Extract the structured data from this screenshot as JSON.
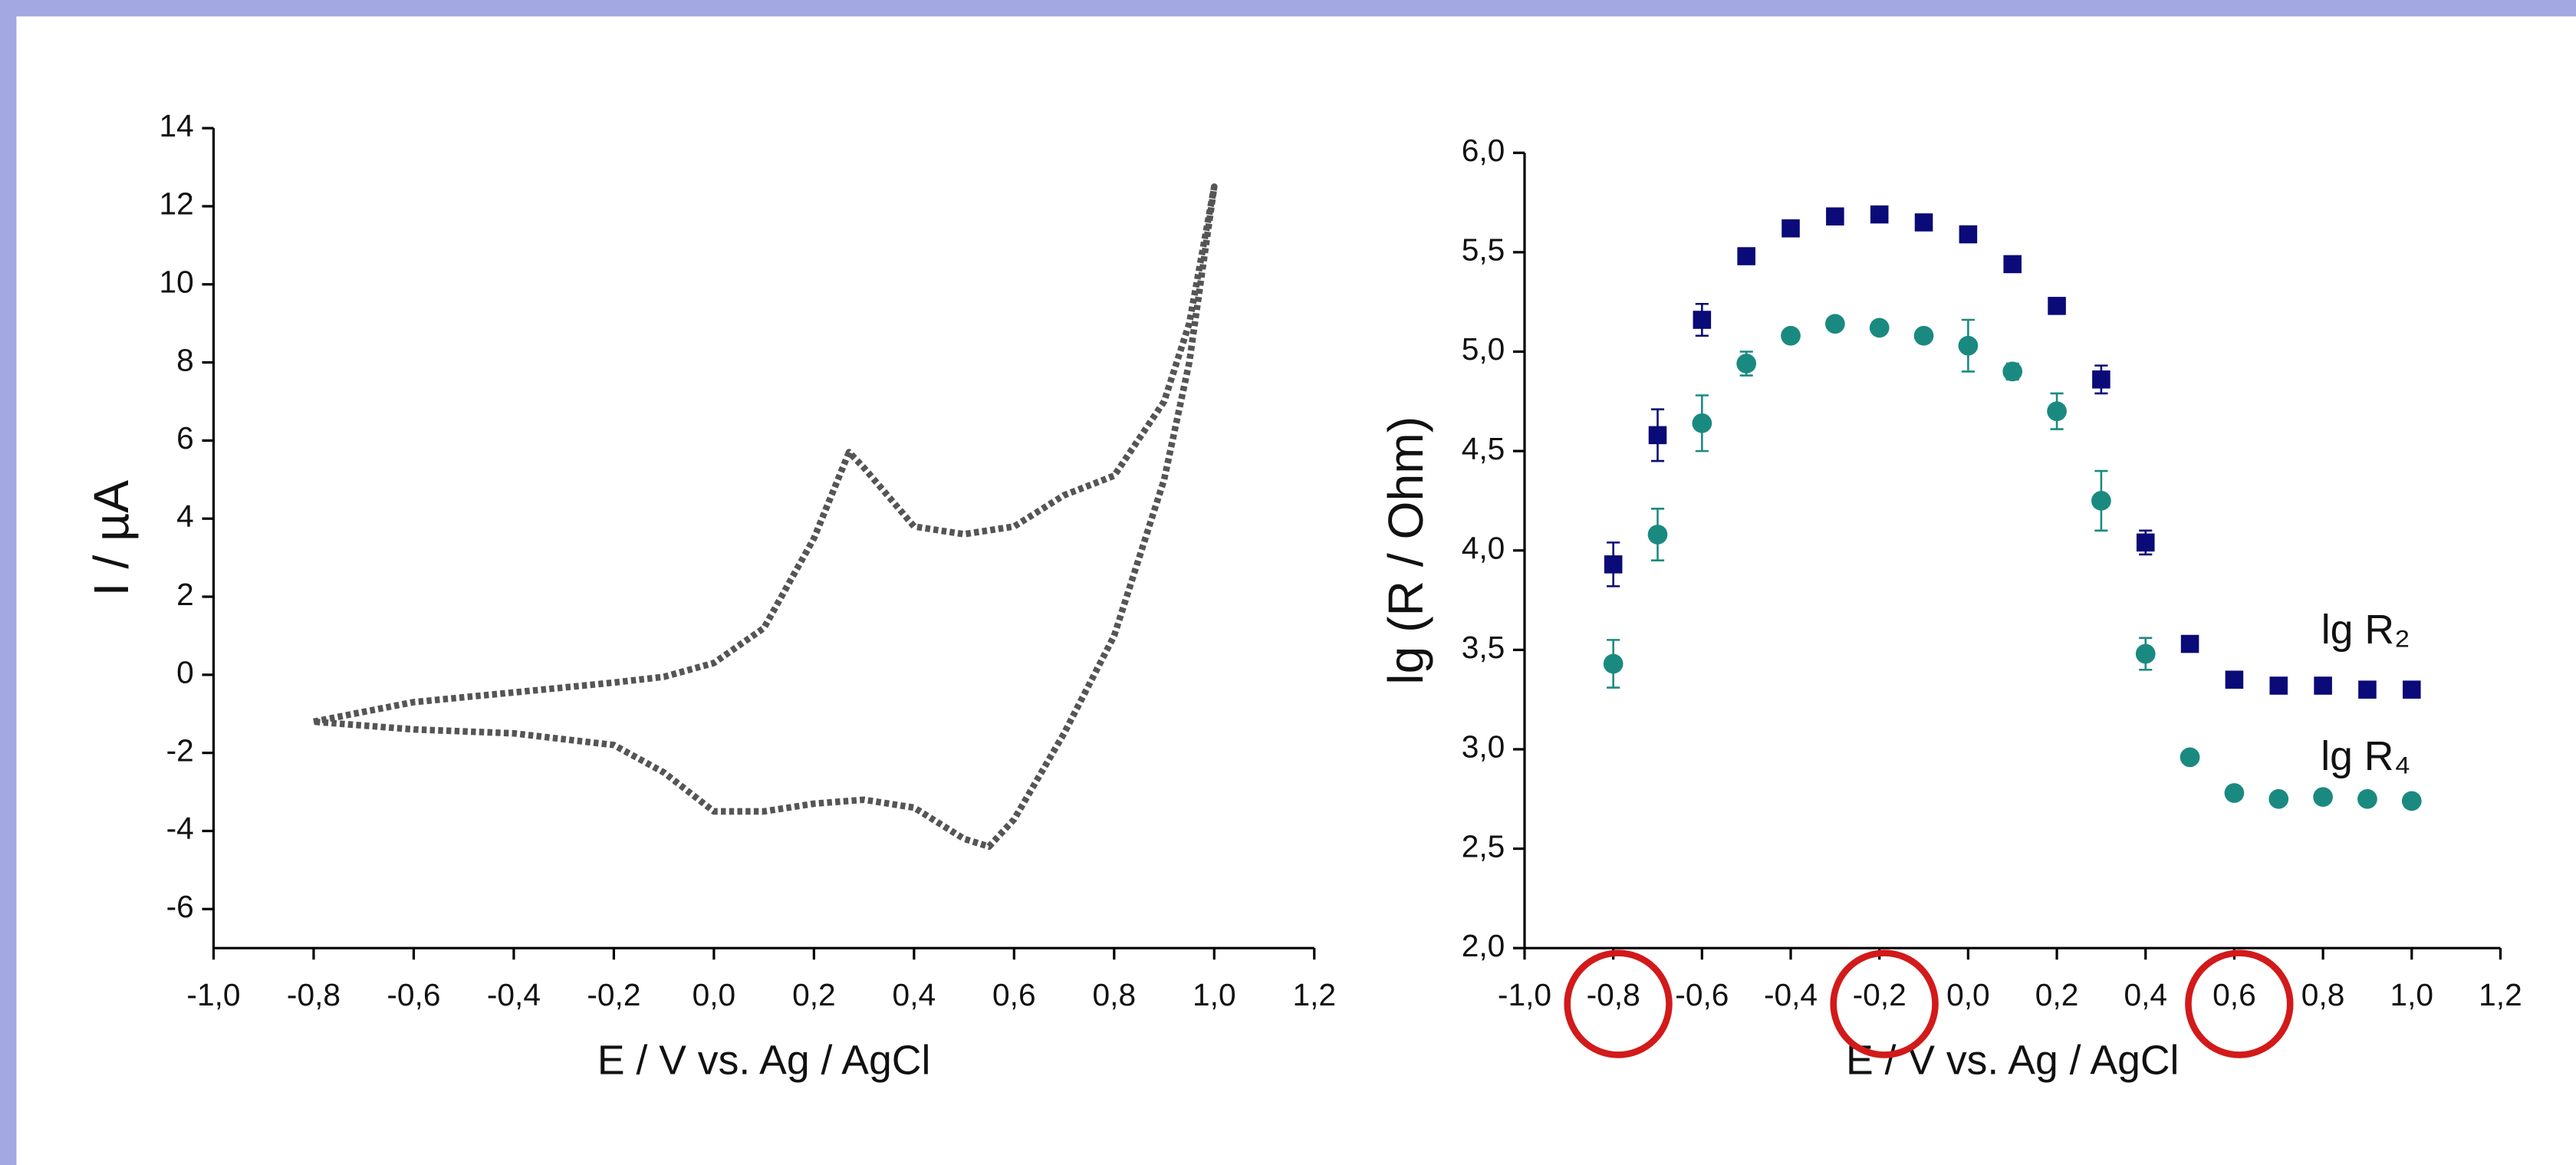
{
  "chart_data": [
    {
      "type": "line",
      "xlabel": "E / V vs. Ag / AgCl",
      "ylabel": "I / µA",
      "xlim": [
        -1.0,
        1.2
      ],
      "ylim": [
        -7,
        14
      ],
      "xticks": [
        {
          "value": -1.0,
          "label": "-1,0"
        },
        {
          "value": -0.8,
          "label": "-0,8"
        },
        {
          "value": -0.6,
          "label": "-0,6"
        },
        {
          "value": -0.4,
          "label": "-0,4"
        },
        {
          "value": -0.2,
          "label": "-0,2"
        },
        {
          "value": 0.0,
          "label": "0,0"
        },
        {
          "value": 0.2,
          "label": "0,2"
        },
        {
          "value": 0.4,
          "label": "0,4"
        },
        {
          "value": 0.6,
          "label": "0,6"
        },
        {
          "value": 0.8,
          "label": "0,8"
        },
        {
          "value": 1.0,
          "label": "1,0"
        },
        {
          "value": 1.2,
          "label": "1,2"
        }
      ],
      "yticks": [
        -6,
        -4,
        -2,
        0,
        2,
        4,
        6,
        8,
        10,
        12,
        14
      ],
      "x": [
        -0.8,
        -0.7,
        -0.6,
        -0.4,
        -0.2,
        -0.1,
        0.0,
        0.1,
        0.2,
        0.27,
        0.3,
        0.4,
        0.5,
        0.6,
        0.7,
        0.8,
        0.9,
        0.95,
        1.0,
        0.95,
        0.9,
        0.8,
        0.7,
        0.6,
        0.55,
        0.5,
        0.4,
        0.3,
        0.2,
        0.1,
        0.0,
        -0.1,
        -0.2,
        -0.4,
        -0.6,
        -0.8
      ],
      "series": [
        {
          "color": "#555555",
          "values": [
            -1.2,
            -0.95,
            -0.7,
            -0.45,
            -0.2,
            -0.05,
            0.3,
            1.2,
            3.5,
            5.7,
            5.3,
            3.8,
            3.6,
            3.8,
            4.6,
            5.1,
            7.0,
            9.0,
            12.5,
            8.0,
            5.0,
            1.0,
            -1.5,
            -3.7,
            -4.4,
            -4.2,
            -3.4,
            -3.2,
            -3.3,
            -3.5,
            -3.5,
            -2.5,
            -1.8,
            -1.5,
            -1.4,
            -1.2
          ]
        }
      ]
    },
    {
      "type": "scatter",
      "xlabel": "E / V vs. Ag / AgCl",
      "ylabel": "lg (R / Ohm)",
      "xlim": [
        -1.0,
        1.2
      ],
      "ylim": [
        2.0,
        6.0
      ],
      "xticks": [
        {
          "value": -1.0,
          "label": "-1,0"
        },
        {
          "value": -0.8,
          "label": "-0,8"
        },
        {
          "value": -0.6,
          "label": "-0,6"
        },
        {
          "value": -0.4,
          "label": "-0,4"
        },
        {
          "value": -0.2,
          "label": "-0,2"
        },
        {
          "value": 0.0,
          "label": "0,0"
        },
        {
          "value": 0.2,
          "label": "0,2"
        },
        {
          "value": 0.4,
          "label": "0,4"
        },
        {
          "value": 0.6,
          "label": "0,6"
        },
        {
          "value": 0.8,
          "label": "0,8"
        },
        {
          "value": 1.0,
          "label": "1,0"
        },
        {
          "value": 1.2,
          "label": "1,2"
        }
      ],
      "yticks": [
        {
          "value": 2.0,
          "label": "2,0"
        },
        {
          "value": 2.5,
          "label": "2,5"
        },
        {
          "value": 3.0,
          "label": "3,0"
        },
        {
          "value": 3.5,
          "label": "3,5"
        },
        {
          "value": 4.0,
          "label": "4,0"
        },
        {
          "value": 4.5,
          "label": "4,5"
        },
        {
          "value": 5.0,
          "label": "5,0"
        },
        {
          "value": 5.5,
          "label": "5,5"
        },
        {
          "value": 6.0,
          "label": "6,0"
        }
      ],
      "x": [
        -0.8,
        -0.7,
        -0.6,
        -0.5,
        -0.4,
        -0.3,
        -0.2,
        -0.1,
        0.0,
        0.1,
        0.2,
        0.3,
        0.4,
        0.5,
        0.6,
        0.7,
        0.8,
        0.9,
        1.0
      ],
      "series": [
        {
          "name": "lg R₂",
          "color": "#0a0a78",
          "marker": "square",
          "values": [
            3.93,
            4.58,
            5.16,
            5.48,
            5.62,
            5.68,
            5.69,
            5.65,
            5.59,
            5.44,
            5.23,
            4.86,
            4.04,
            3.53,
            3.35,
            3.32,
            3.32,
            3.3,
            3.3
          ],
          "errors": [
            0.11,
            0.13,
            0.08,
            0.03,
            0.03,
            0.03,
            0.02,
            0.03,
            0.03,
            0.03,
            0.03,
            0.07,
            0.06,
            0.02,
            0.02,
            0.02,
            0.02,
            0.02,
            0.02
          ]
        },
        {
          "name": "lg R₄",
          "color": "#1a8a80",
          "marker": "circle",
          "values": [
            3.43,
            4.08,
            4.64,
            4.94,
            5.08,
            5.14,
            5.12,
            5.08,
            5.03,
            4.9,
            4.7,
            4.25,
            3.48,
            2.96,
            2.78,
            2.75,
            2.76,
            2.75,
            2.74
          ],
          "errors": [
            0.12,
            0.13,
            0.14,
            0.06,
            0.03,
            0.03,
            0.03,
            0.03,
            0.13,
            0.04,
            0.09,
            0.15,
            0.08,
            0.02,
            0.02,
            0.02,
            0.02,
            0.02,
            0.02
          ]
        }
      ]
    }
  ]
}
